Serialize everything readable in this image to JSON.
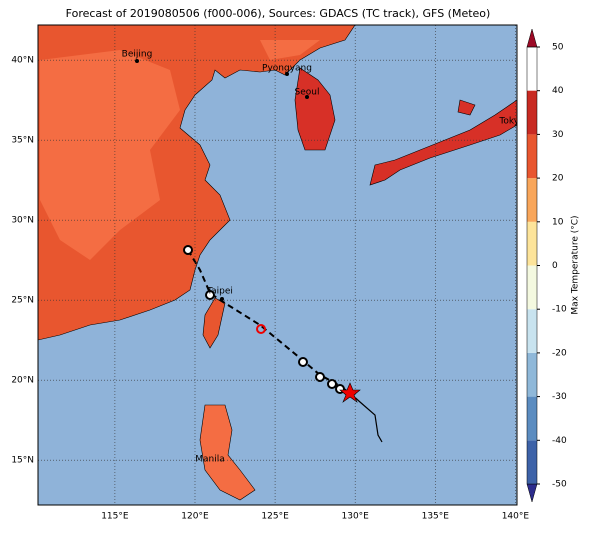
{
  "title": "Forecast of 2019080506 (f000-006), Sources: GDACS (TC track), GFS (Meteo)",
  "map": {
    "xlim": [
      110.2,
      140.1
    ],
    "ylim": [
      12.2,
      42.2
    ],
    "lon_ticks": [
      {
        "value": 115,
        "label": "115°E"
      },
      {
        "value": 120,
        "label": "120°E"
      },
      {
        "value": 125,
        "label": "125°E"
      },
      {
        "value": 130,
        "label": "130°E"
      },
      {
        "value": 135,
        "label": "135°E"
      },
      {
        "value": 140,
        "label": "140°E"
      }
    ],
    "lat_ticks": [
      {
        "value": 15,
        "label": "15°N"
      },
      {
        "value": 20,
        "label": "20°N"
      },
      {
        "value": 25,
        "label": "25°N"
      },
      {
        "value": 30,
        "label": "30°N"
      },
      {
        "value": 35,
        "label": "35°N"
      },
      {
        "value": 40,
        "label": "40°N"
      }
    ],
    "cities": [
      "Beijing",
      "Pyongyang",
      "Seoul",
      "Tokyo",
      "Taipei",
      "Manila"
    ]
  },
  "colorbar": {
    "label": "Max Temperature (°C)",
    "lim": [
      -50,
      50
    ],
    "ticks": [
      -50,
      -40,
      -30,
      -20,
      -10,
      0,
      10,
      20,
      30,
      40,
      50
    ],
    "colors": [
      "#2c2c8c",
      "#3d62a8",
      "#5b8cc0",
      "#8fb8d9",
      "#c8e3ef",
      "#f4f9e0",
      "#fde49a",
      "#f9a65a",
      "#e8562f",
      "#c82a22",
      "#9c0a26"
    ]
  }
}
